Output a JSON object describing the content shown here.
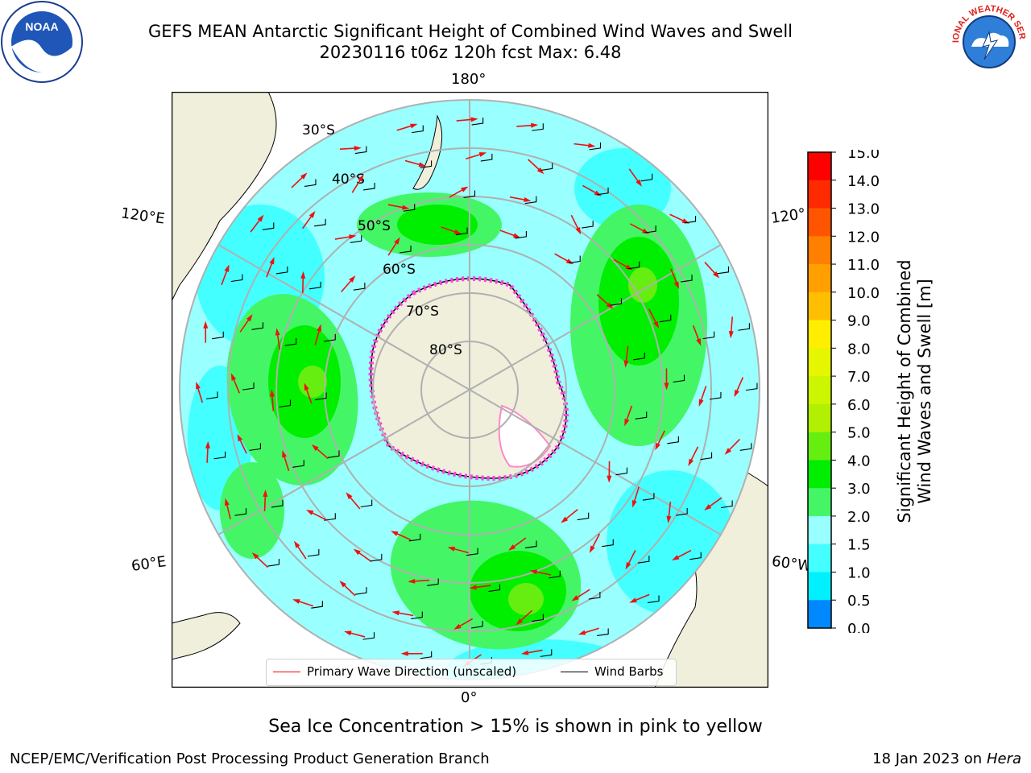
{
  "header": {
    "title_line1": "GEFS MEAN Antarctic Significant Height of Combined Wind Waves and Swell",
    "title_line2": "20230116 t06z 120h fcst   Max: 6.48"
  },
  "logos": {
    "left": "NOAA",
    "right": "NATIONAL WEATHER SERVICE"
  },
  "map": {
    "lon_labels": {
      "top": "180°",
      "bottom": "0°",
      "left_upper": "120°E",
      "left_lower": "60°E",
      "right_upper": "120°",
      "right_lower": "60°W"
    },
    "lat_labels": [
      "30°S",
      "40°S",
      "50°S",
      "60°S",
      "70°S",
      "80°S"
    ],
    "legend": {
      "wave_label": "Primary Wave Direction (unscaled)",
      "wind_label": "Wind Barbs"
    }
  },
  "colorbar": {
    "label_line1": "Significant Height of Combined",
    "label_line2": "Wind Waves and Swell [m]",
    "ticks": [
      "15.0",
      "14.0",
      "13.0",
      "12.0",
      "11.0",
      "10.0",
      "9.0",
      "8.0",
      "7.0",
      "6.0",
      "5.0",
      "4.0",
      "3.0",
      "2.0",
      "1.5",
      "1.0",
      "0.5",
      "0.0"
    ],
    "colors": [
      "#ff0000",
      "#ff2a00",
      "#ff5500",
      "#ff7f00",
      "#ff9f00",
      "#ffbf00",
      "#ffee00",
      "#e6f500",
      "#ccf500",
      "#b0f000",
      "#66ee11",
      "#00ee00",
      "#44f666",
      "#99ffff",
      "#44ffff",
      "#00f0ff",
      "#0088ff",
      "#0000ff"
    ]
  },
  "footer": {
    "note": "Sea Ice Concentration > 15% is shown in pink to yellow",
    "left": "NCEP/EMC/Verification Post Processing Product Generation Branch",
    "right_date": "18 Jan 2023 on",
    "right_host": "Hera"
  }
}
